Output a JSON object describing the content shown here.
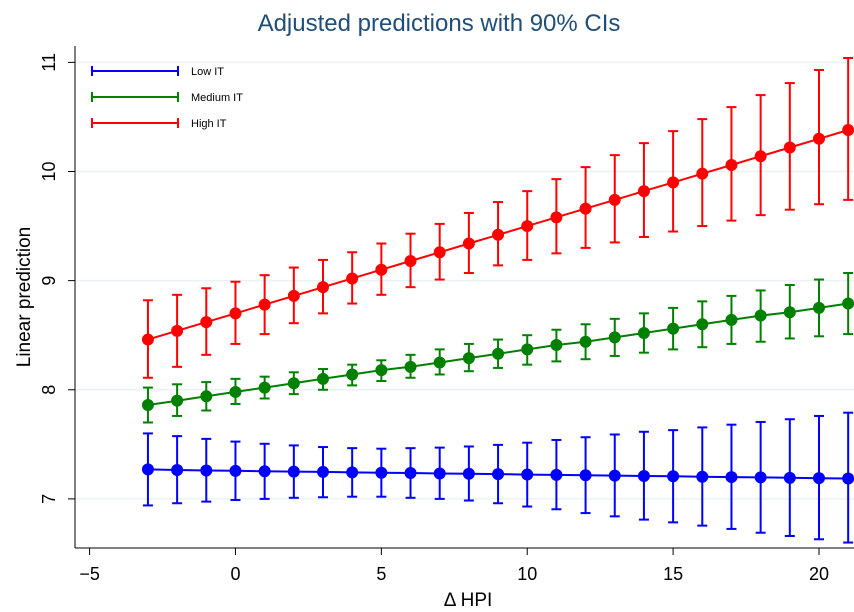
{
  "chart_data": {
    "type": "line",
    "title": "Adjusted predictions with 90% CIs",
    "xlabel": "Δ HPI",
    "ylabel": "Linear prediction",
    "xlim": [
      -5.5,
      21.2
    ],
    "ylim": [
      6.55,
      11.15
    ],
    "x_ticks": [
      -5,
      0,
      5,
      10,
      15,
      20
    ],
    "x_tick_labels": [
      "−5",
      "0",
      "5",
      "10",
      "15",
      "20"
    ],
    "y_ticks": [
      7,
      8,
      9,
      10,
      11
    ],
    "y_tick_labels": [
      "7",
      "8",
      "9",
      "10",
      "11"
    ],
    "grid": "horizontal",
    "legend_position": "top-left",
    "x": [
      -3,
      -2,
      -1,
      0,
      1,
      2,
      3,
      4,
      5,
      6,
      7,
      8,
      9,
      10,
      11,
      12,
      13,
      14,
      15,
      16,
      17,
      18,
      19,
      20,
      21
    ],
    "series": [
      {
        "name": "Low IT",
        "color": "#0000ff",
        "values": [
          7.27,
          7.265,
          7.26,
          7.257,
          7.253,
          7.25,
          7.247,
          7.243,
          7.24,
          7.237,
          7.233,
          7.23,
          7.227,
          7.223,
          7.22,
          7.217,
          7.213,
          7.21,
          7.207,
          7.203,
          7.2,
          7.197,
          7.193,
          7.19,
          7.187
        ],
        "lower": [
          6.94,
          6.96,
          6.975,
          6.99,
          7.0,
          7.01,
          7.015,
          7.02,
          7.02,
          7.01,
          7.0,
          6.985,
          6.96,
          6.93,
          6.905,
          6.87,
          6.84,
          6.81,
          6.785,
          6.755,
          6.725,
          6.69,
          6.66,
          6.63,
          6.6
        ],
        "upper": [
          7.6,
          7.575,
          7.55,
          7.525,
          7.505,
          7.49,
          7.475,
          7.465,
          7.46,
          7.465,
          7.47,
          7.48,
          7.495,
          7.515,
          7.54,
          7.565,
          7.59,
          7.615,
          7.63,
          7.655,
          7.68,
          7.705,
          7.73,
          7.76,
          7.79
        ]
      },
      {
        "name": "Medium IT",
        "color": "#008000",
        "values": [
          7.86,
          7.9,
          7.94,
          7.98,
          8.02,
          8.06,
          8.1,
          8.14,
          8.18,
          8.21,
          8.25,
          8.29,
          8.33,
          8.37,
          8.41,
          8.44,
          8.48,
          8.52,
          8.56,
          8.6,
          8.64,
          8.68,
          8.71,
          8.75,
          8.79
        ],
        "lower": [
          7.7,
          7.76,
          7.81,
          7.87,
          7.92,
          7.96,
          8.0,
          8.04,
          8.08,
          8.11,
          8.14,
          8.17,
          8.2,
          8.23,
          8.26,
          8.28,
          8.31,
          8.34,
          8.37,
          8.39,
          8.42,
          8.44,
          8.47,
          8.49,
          8.51
        ],
        "upper": [
          8.02,
          8.05,
          8.07,
          8.1,
          8.12,
          8.16,
          8.19,
          8.23,
          8.27,
          8.32,
          8.37,
          8.42,
          8.46,
          8.5,
          8.55,
          8.6,
          8.65,
          8.7,
          8.75,
          8.81,
          8.86,
          8.91,
          8.96,
          9.01,
          9.07
        ]
      },
      {
        "name": "High IT",
        "color": "#ff0000",
        "values": [
          8.46,
          8.54,
          8.62,
          8.7,
          8.78,
          8.86,
          8.94,
          9.02,
          9.1,
          9.18,
          9.26,
          9.34,
          9.42,
          9.5,
          9.58,
          9.66,
          9.74,
          9.82,
          9.9,
          9.98,
          10.06,
          10.14,
          10.22,
          10.3,
          10.38
        ],
        "lower": [
          8.11,
          8.21,
          8.32,
          8.42,
          8.51,
          8.61,
          8.7,
          8.79,
          8.87,
          8.94,
          9.01,
          9.07,
          9.14,
          9.19,
          9.25,
          9.3,
          9.35,
          9.4,
          9.45,
          9.5,
          9.55,
          9.6,
          9.65,
          9.7,
          9.74
        ],
        "upper": [
          8.82,
          8.87,
          8.93,
          8.99,
          9.05,
          9.12,
          9.19,
          9.26,
          9.34,
          9.43,
          9.52,
          9.62,
          9.72,
          9.82,
          9.93,
          10.04,
          10.15,
          10.26,
          10.37,
          10.48,
          10.59,
          10.7,
          10.81,
          10.93,
          11.04
        ]
      }
    ]
  }
}
